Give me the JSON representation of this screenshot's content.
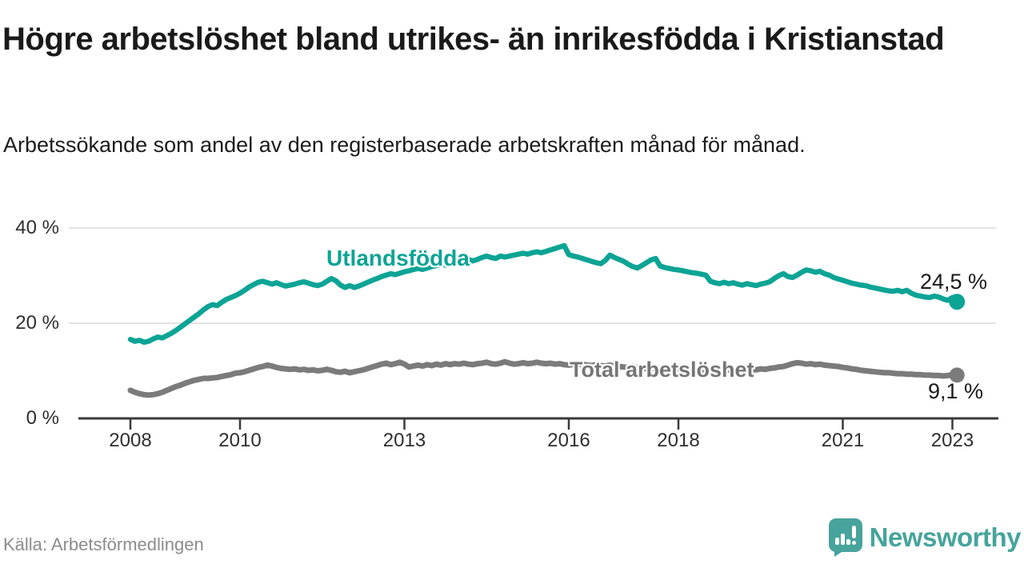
{
  "header": {
    "title": "Högre arbetslöshet bland utrikes- än inrikesfödda i Kristianstad",
    "subtitle": "Arbetssökande som andel av den registerbaserade arbetskraften månad för månad."
  },
  "chart_data": {
    "type": "line",
    "title": "Högre arbetslöshet bland utrikes- än inrikesfödda i Kristianstad",
    "subtitle": "Arbetssökande som andel av den registerbaserade arbetskraften månad för månad.",
    "x_interval": "month",
    "x_start": "2008-01",
    "x_end": "2023-02",
    "x_ticks": [
      2008,
      2010,
      2013,
      2016,
      2018,
      2021,
      2023
    ],
    "y_ticks": [
      {
        "label": "40 %",
        "value": 40
      },
      {
        "label": "20 %",
        "value": 20
      },
      {
        "label": "0 %",
        "value": 0
      }
    ],
    "ylim": [
      0,
      43
    ],
    "grid": "horizontal",
    "legend_position": "inline-labels",
    "series": [
      {
        "name": "Utlandsfödda",
        "color": "#0ca495",
        "end_label": "24,5 %",
        "end_value": 24.5,
        "values": [
          16.6,
          16.2,
          16.4,
          16.0,
          16.2,
          16.7,
          17.1,
          16.9,
          17.4,
          17.9,
          18.5,
          19.2,
          19.9,
          20.6,
          21.3,
          22.0,
          22.8,
          23.5,
          23.9,
          23.7,
          24.4,
          25.0,
          25.4,
          25.8,
          26.3,
          26.9,
          27.6,
          28.1,
          28.6,
          28.8,
          28.5,
          28.2,
          28.5,
          28.1,
          27.8,
          28.0,
          28.2,
          28.5,
          28.7,
          28.4,
          28.1,
          27.9,
          28.2,
          28.8,
          29.4,
          28.9,
          28.0,
          27.5,
          27.9,
          27.5,
          27.8,
          28.2,
          28.6,
          29.0,
          29.4,
          29.8,
          30.1,
          30.4,
          30.2,
          30.5,
          30.8,
          31.0,
          31.3,
          31.5,
          31.3,
          31.6,
          31.9,
          32.1,
          32.4,
          32.2,
          32.5,
          32.7,
          32.9,
          33.2,
          33.4,
          33.1,
          33.4,
          33.8,
          34.1,
          33.8,
          33.6,
          34.1,
          33.9,
          34.1,
          34.3,
          34.5,
          34.7,
          34.5,
          34.8,
          35.0,
          34.8,
          35.1,
          35.4,
          35.7,
          36.0,
          36.3,
          34.4,
          34.1,
          33.9,
          33.6,
          33.3,
          33.0,
          32.7,
          32.5,
          33.2,
          34.3,
          33.8,
          33.4,
          33.0,
          32.4,
          31.9,
          31.6,
          32.1,
          32.7,
          33.3,
          33.6,
          32.0,
          31.7,
          31.5,
          31.3,
          31.2,
          31.0,
          30.8,
          30.6,
          30.5,
          30.3,
          30.1,
          28.8,
          28.5,
          28.3,
          28.6,
          28.3,
          28.5,
          28.2,
          28.0,
          28.3,
          28.1,
          27.9,
          28.2,
          28.4,
          28.7,
          29.4,
          30.0,
          30.4,
          29.8,
          29.6,
          30.1,
          30.7,
          31.2,
          31.0,
          30.7,
          30.9,
          30.4,
          30.1,
          29.6,
          29.3,
          29.0,
          28.7,
          28.4,
          28.2,
          28.0,
          27.9,
          27.6,
          27.4,
          27.2,
          27.0,
          26.8,
          26.7,
          26.9,
          26.6,
          26.9,
          26.3,
          25.9,
          25.7,
          25.5,
          25.4,
          25.7,
          25.5,
          25.1,
          24.8,
          25.4,
          24.5
        ]
      },
      {
        "name": "Total arbetslöshet",
        "color": "#7b7b7b",
        "end_label": "9,1 %",
        "end_value": 9.1,
        "values": [
          5.9,
          5.5,
          5.2,
          5.0,
          4.9,
          5.0,
          5.2,
          5.5,
          5.9,
          6.3,
          6.7,
          7.0,
          7.4,
          7.7,
          8.0,
          8.2,
          8.4,
          8.4,
          8.5,
          8.6,
          8.8,
          9.0,
          9.2,
          9.5,
          9.6,
          9.8,
          10.1,
          10.4,
          10.7,
          10.9,
          11.2,
          11.0,
          10.7,
          10.5,
          10.4,
          10.3,
          10.4,
          10.2,
          10.3,
          10.1,
          10.2,
          10.0,
          10.1,
          10.3,
          10.1,
          9.8,
          9.7,
          9.9,
          9.6,
          9.8,
          10.0,
          10.2,
          10.5,
          10.8,
          11.1,
          11.4,
          11.6,
          11.3,
          11.5,
          11.8,
          11.4,
          10.8,
          11.0,
          11.2,
          11.0,
          11.3,
          11.1,
          11.4,
          11.2,
          11.5,
          11.3,
          11.5,
          11.4,
          11.6,
          11.4,
          11.3,
          11.5,
          11.6,
          11.8,
          11.5,
          11.4,
          11.6,
          11.9,
          11.6,
          11.4,
          11.5,
          11.7,
          11.5,
          11.6,
          11.8,
          11.6,
          11.5,
          11.6,
          11.4,
          11.5,
          11.3,
          11.2,
          11.4,
          11.3,
          11.4,
          11.2,
          11.1,
          11.3,
          11.1,
          11.0,
          11.2,
          11.0,
          10.9,
          10.8,
          10.7,
          10.9,
          10.7,
          10.6,
          10.4,
          10.6,
          10.4,
          10.3,
          10.5,
          10.3,
          10.4,
          10.4,
          10.3,
          10.4,
          10.2,
          10.3,
          10.1,
          10.2,
          10.1,
          10.3,
          10.2,
          10.1,
          10.2,
          10.1,
          10.2,
          10.0,
          10.1,
          10.3,
          10.2,
          10.4,
          10.3,
          10.5,
          10.6,
          10.8,
          10.9,
          11.2,
          11.5,
          11.7,
          11.6,
          11.4,
          11.5,
          11.3,
          11.4,
          11.2,
          11.1,
          11.0,
          10.9,
          10.7,
          10.6,
          10.4,
          10.3,
          10.1,
          10.0,
          9.9,
          9.8,
          9.7,
          9.6,
          9.6,
          9.5,
          9.4,
          9.4,
          9.3,
          9.3,
          9.2,
          9.2,
          9.1,
          9.1,
          9.0,
          9.0,
          8.9,
          9.0,
          9.2,
          9.1
        ]
      }
    ]
  },
  "colors": {
    "accent_teal": "#0ca495",
    "series_gray": "#7b7b7b",
    "grid": "#dcdcdc",
    "axis": "#3a3a3a",
    "logo_teal": "#46a49c"
  },
  "footer": {
    "source": "Källa: Arbetsförmedlingen",
    "brand": "Newsworthy"
  }
}
